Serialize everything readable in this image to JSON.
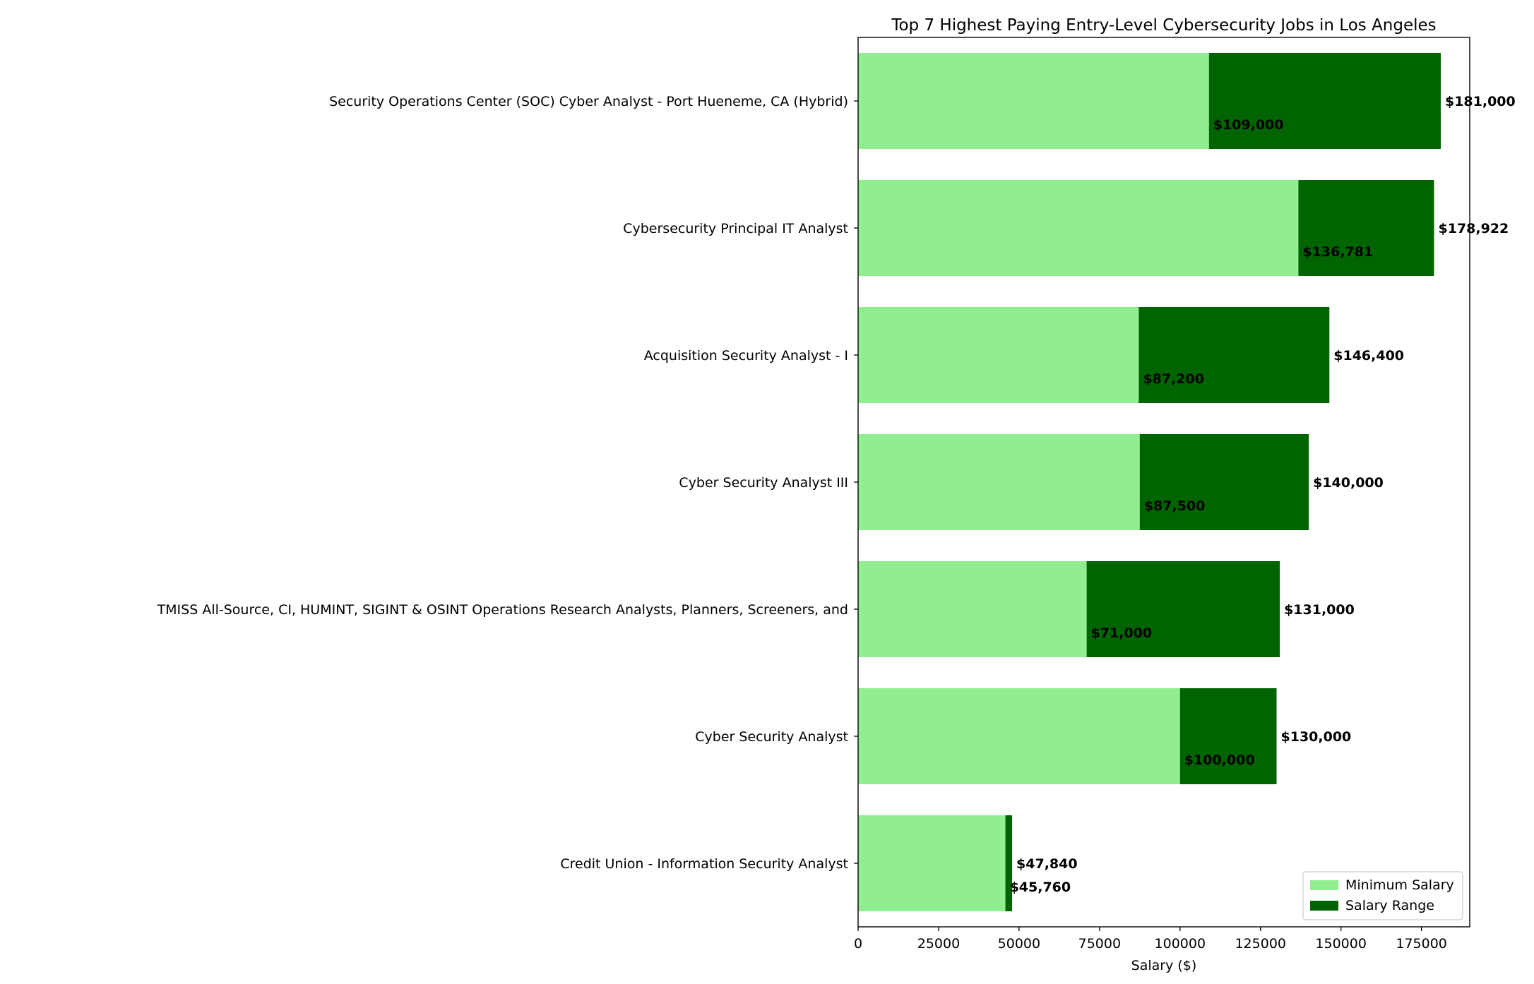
{
  "chart_data": {
    "type": "bar",
    "orientation": "horizontal",
    "stacked": true,
    "title": "Top 7 Highest Paying Entry-Level Cybersecurity Jobs in Los Angeles",
    "xlabel": "Salary ($)",
    "ylabel": "",
    "xlim": [
      0,
      190000
    ],
    "xticks": [
      0,
      25000,
      50000,
      75000,
      100000,
      125000,
      150000,
      175000
    ],
    "xtick_labels": [
      "0",
      "25000",
      "50000",
      "75000",
      "100000",
      "125000",
      "150000",
      "175000"
    ],
    "grid": false,
    "legend_position": "bottom-right",
    "categories": [
      "Security Operations Center (SOC) Cyber Analyst - Port Hueneme, CA (Hybrid)",
      "Cybersecurity Principal IT Analyst",
      "Acquisition Security Analyst - I",
      "Cyber Security Analyst III",
      "TMISS All-Source, CI, HUMINT, SIGINT & OSINT Operations Research Analysts, Planners, Screeners, and",
      "Cyber Security Analyst",
      "Credit Union - Information Security Analyst"
    ],
    "series": [
      {
        "name": "Minimum Salary",
        "color": "#90ee90",
        "values": [
          109000,
          136781,
          87200,
          87500,
          71000,
          100000,
          45760
        ]
      },
      {
        "name": "Salary Range",
        "color": "#006400",
        "values": [
          72000,
          42141,
          59200,
          52500,
          60000,
          30000,
          2080
        ]
      }
    ],
    "min_labels": [
      "$109,000",
      "$136,781",
      "$87,200",
      "$87,500",
      "$71,000",
      "$100,000",
      "$45,760"
    ],
    "max_labels": [
      "$181,000",
      "$178,922",
      "$146,400",
      "$140,000",
      "$131,000",
      "$130,000",
      "$47,840"
    ]
  }
}
